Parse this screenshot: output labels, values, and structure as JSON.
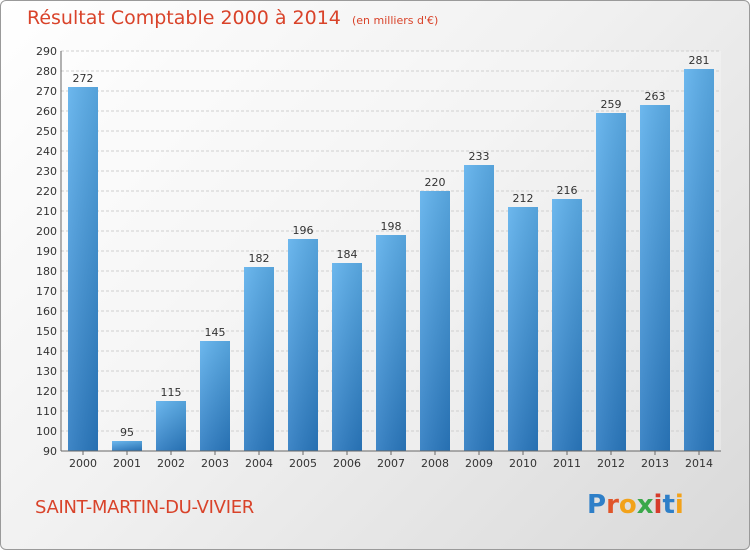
{
  "title": "Résultat Comptable 2000 à 2014",
  "unit": "(en milliers d'€)",
  "commune": "SAINT-MARTIN-DU-VIVIER",
  "brand": {
    "text": "Proxiti",
    "letter_colors": [
      "#2e7fc8",
      "#e0552a",
      "#f2a21a",
      "#3aa84a",
      "#d63b2b",
      "#2e7fc8",
      "#f2a21a"
    ]
  },
  "colors": {
    "bar": "#3a90d8",
    "bar_light": "#5db0ec",
    "title": "#d9432a",
    "grid": "#cfcfcf"
  },
  "chart_data": {
    "type": "bar",
    "title": "Résultat Comptable 2000 à 2014",
    "subtitle": "(en milliers d'€)",
    "xlabel": "",
    "ylabel": "",
    "categories": [
      "2000",
      "2001",
      "2002",
      "2003",
      "2004",
      "2005",
      "2006",
      "2007",
      "2008",
      "2009",
      "2010",
      "2011",
      "2012",
      "2013",
      "2014"
    ],
    "values": [
      272,
      95,
      115,
      145,
      182,
      196,
      184,
      198,
      220,
      233,
      212,
      216,
      259,
      263,
      281
    ],
    "ylim": [
      90,
      290
    ],
    "ytick_step": 10,
    "grid": true,
    "data_labels": true
  }
}
